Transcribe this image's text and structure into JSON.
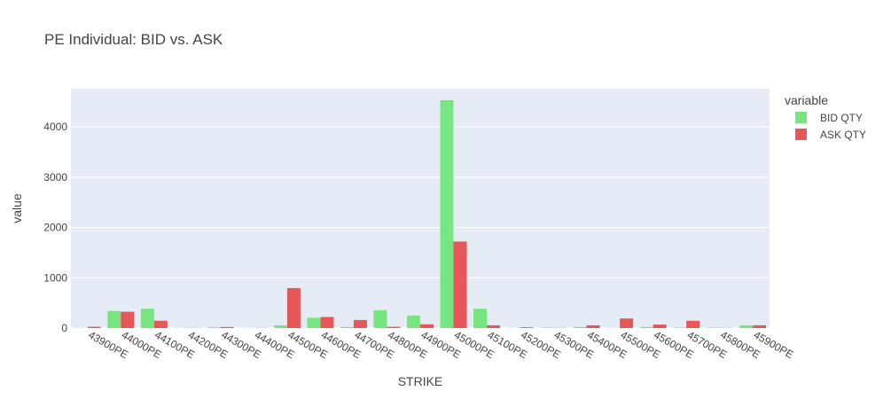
{
  "chart_data": {
    "type": "bar",
    "title": "PE Individual: BID vs. ASK",
    "xlabel": "STRIKE",
    "ylabel": "value",
    "ylim": [
      0,
      4760
    ],
    "yticks": [
      0,
      1000,
      2000,
      3000,
      4000
    ],
    "grid": true,
    "legend": {
      "title": "variable",
      "placement": "top-right"
    },
    "categories": [
      "43900PE",
      "44000PE",
      "44100PE",
      "44200PE",
      "44300PE",
      "44400PE",
      "44500PE",
      "44600PE",
      "44700PE",
      "44800PE",
      "44900PE",
      "45000PE",
      "45100PE",
      "45200PE",
      "45300PE",
      "45400PE",
      "45500PE",
      "45600PE",
      "45700PE",
      "45800PE",
      "45900PE"
    ],
    "series": [
      {
        "name": "BID QTY",
        "color": "#77e67e",
        "values": [
          5,
          340,
          385,
          5,
          15,
          5,
          55,
          205,
          20,
          355,
          250,
          4530,
          385,
          5,
          10,
          20,
          5,
          20,
          10,
          10,
          55
        ]
      },
      {
        "name": "ASK QTY",
        "color": "#e65757",
        "values": [
          25,
          325,
          145,
          5,
          20,
          5,
          795,
          220,
          160,
          25,
          75,
          1720,
          55,
          15,
          5,
          55,
          190,
          70,
          145,
          5,
          55
        ]
      }
    ]
  }
}
